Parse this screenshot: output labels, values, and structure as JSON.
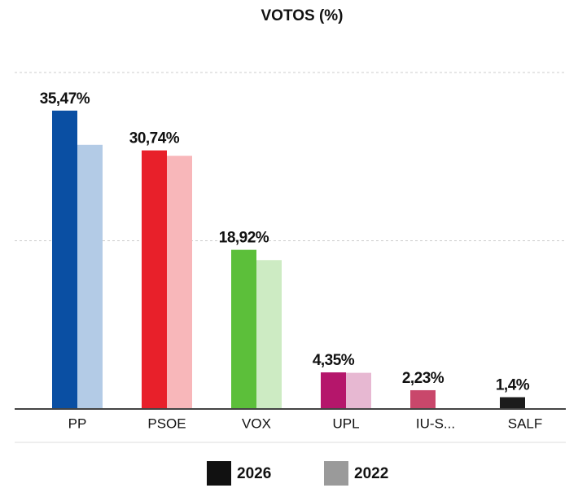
{
  "chart_data": {
    "type": "bar",
    "title": "VOTOS (%)",
    "categories": [
      "PP",
      "PSOE",
      "VOX",
      "UPL",
      "IU-S...",
      "SALF"
    ],
    "series": [
      {
        "name": "2026",
        "color": "#111111",
        "colors": [
          "#0a4fa3",
          "#e8202a",
          "#5cbf3a",
          "#b5166b",
          "#c9476b",
          "#1c1c1c"
        ],
        "values": [
          35.47,
          30.74,
          18.92,
          4.35,
          2.23,
          1.4
        ],
        "value_labels": [
          "35,47%",
          "30,74%",
          "18,92%",
          "4,35%",
          "2,23%",
          "1,4%"
        ]
      },
      {
        "name": "2022",
        "color": "#9a9a9a",
        "colors": [
          "#b3cbe6",
          "#f8b7ba",
          "#cdebc3",
          "#e7b8d2",
          "#e8b8c5",
          "#bbbbbb"
        ],
        "values": [
          31.4,
          30.1,
          17.7,
          4.3,
          null,
          null
        ]
      }
    ],
    "ylim": [
      0,
      40
    ],
    "yticks": [
      20,
      40
    ],
    "grid": true
  }
}
